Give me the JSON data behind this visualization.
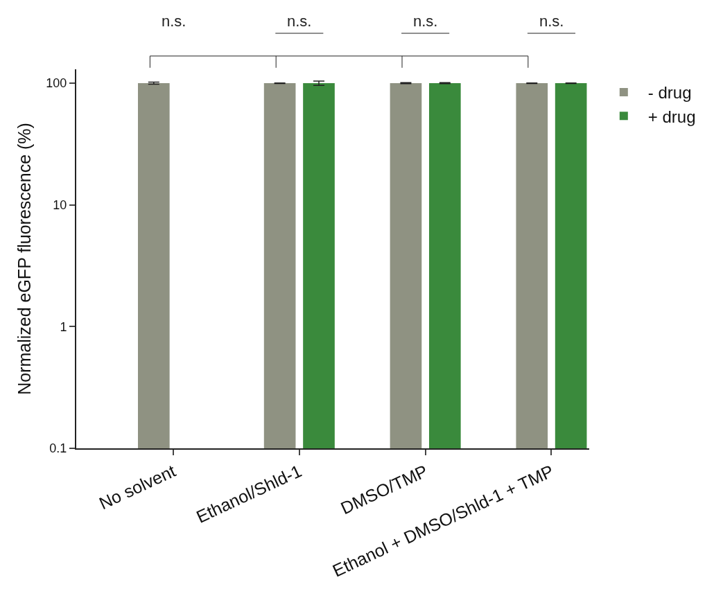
{
  "chart_data": {
    "type": "bar",
    "categories": [
      "No solvent",
      "Ethanol/Shld-1",
      "DMSO/TMP",
      "Ethanol + DMSO/Shld-1 + TMP"
    ],
    "series": [
      {
        "name": "- drug",
        "color": "#8f9282",
        "values": [
          100,
          100,
          100,
          100
        ],
        "errors": [
          2,
          0.5,
          1,
          0.5
        ]
      },
      {
        "name": "+ drug",
        "color": "#3a8a3c",
        "values": [
          null,
          100,
          100,
          100
        ],
        "errors": [
          null,
          4,
          1,
          0.5
        ]
      }
    ],
    "ylabel": "Normalized eGFP fluorescence (%)",
    "log": "y",
    "ylim": [
      0.1,
      130
    ],
    "yticks": [
      0.1,
      1,
      10,
      100
    ],
    "legend": "right",
    "annotations": [
      "n.s.",
      "n.s.",
      "n.s.",
      "n.s."
    ]
  }
}
